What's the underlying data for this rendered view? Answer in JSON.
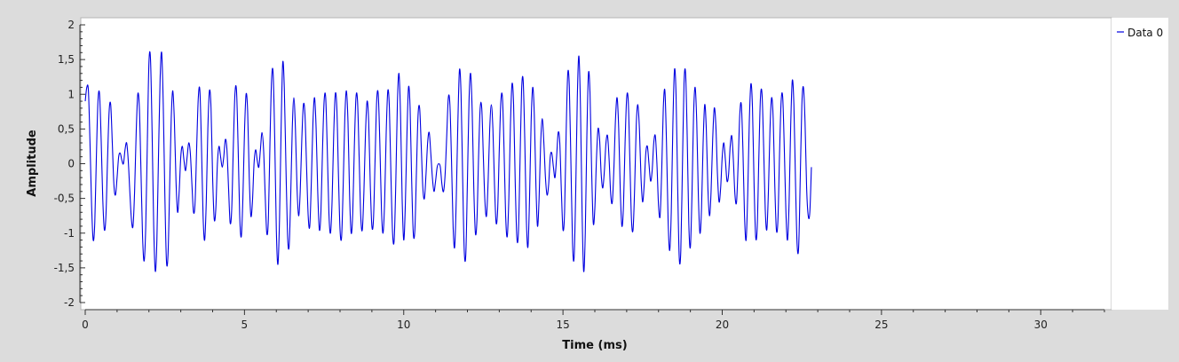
{
  "chart_data": {
    "type": "line",
    "title": "",
    "xlabel": "Time (ms)",
    "ylabel": "Amplitude",
    "xlim": [
      0,
      32
    ],
    "ylim": [
      -2,
      2
    ],
    "x_ticks": [
      0,
      5,
      10,
      15,
      20,
      25,
      30
    ],
    "x_tick_labels": [
      "0",
      "5",
      "10",
      "15",
      "20",
      "25",
      "30"
    ],
    "y_ticks": [
      2,
      1.5,
      1,
      0.5,
      0,
      -0.5,
      -1,
      -1.5,
      -2
    ],
    "y_tick_labels": [
      "2",
      "1,5",
      "1",
      "0,5",
      "0",
      "-0,5",
      "-1",
      "-1,5",
      "-2"
    ],
    "grid": false,
    "legend_position": "right",
    "series": [
      {
        "name": "Data 0",
        "color": "#0000e0",
        "x_start": 0,
        "x_step": 0.05,
        "values": [
          0.9,
          1.1,
          1.05,
          0.3,
          -0.6,
          -1.1,
          -0.85,
          0.1,
          0.9,
          1.0,
          0.35,
          -0.5,
          -0.95,
          -0.75,
          0.05,
          0.75,
          0.85,
          0.3,
          -0.3,
          -0.45,
          -0.2,
          0.1,
          0.15,
          0.05,
          0.0,
          0.2,
          0.3,
          0.05,
          -0.4,
          -0.8,
          -0.9,
          -0.4,
          0.45,
          1.0,
          0.8,
          -0.1,
          -1.05,
          -1.4,
          -0.9,
          0.3,
          1.45,
          1.5,
          0.45,
          -0.9,
          -1.55,
          -1.1,
          0.1,
          1.2,
          1.6,
          0.85,
          -0.45,
          -1.4,
          -1.3,
          -0.35,
          0.65,
          1.05,
          0.6,
          -0.25,
          -0.7,
          -0.4,
          0.1,
          0.25,
          0.05,
          -0.1,
          0.1,
          0.3,
          0.15,
          -0.3,
          -0.7,
          -0.55,
          0.25,
          0.95,
          1.05,
          0.25,
          -0.75,
          -1.1,
          -0.55,
          0.5,
          1.05,
          0.8,
          -0.2,
          -0.8,
          -0.65,
          0.0,
          0.25,
          0.1,
          -0.05,
          0.1,
          0.35,
          0.2,
          -0.35,
          -0.85,
          -0.65,
          0.25,
          1.0,
          1.05,
          0.25,
          -0.75,
          -1.05,
          -0.5,
          0.45,
          1.0,
          0.75,
          -0.2,
          -0.75,
          -0.55,
          0.0,
          0.2,
          0.05,
          -0.05,
          0.2,
          0.45,
          0.2,
          -0.45,
          -1.0,
          -0.8,
          0.3,
          1.2,
          1.3,
          0.35,
          -0.95,
          -1.45,
          -0.8,
          0.5,
          1.45,
          1.1,
          0.0,
          -1.0,
          -1.2,
          -0.5,
          0.5,
          0.95,
          0.5,
          -0.35,
          -0.75,
          -0.4,
          0.35,
          0.85,
          0.7,
          -0.05,
          -0.75,
          -0.9,
          -0.25,
          0.6,
          0.95,
          0.5,
          -0.4,
          -0.95,
          -0.7,
          0.2,
          0.9,
          0.95,
          0.2,
          -0.7,
          -1.0,
          -0.55,
          0.4,
          1.0,
          0.8,
          -0.15,
          -0.95,
          -1.05,
          -0.3,
          0.65,
          1.05,
          0.6,
          -0.45,
          -1.0,
          -0.7,
          0.25,
          0.95,
          0.9,
          0.1,
          -0.75,
          -0.95,
          -0.4,
          0.45,
          0.9,
          0.6,
          -0.3,
          -0.9,
          -0.8,
          0.05,
          0.9,
          1.0,
          0.3,
          -0.65,
          -1.0,
          -0.55,
          0.45,
          1.05,
          0.8,
          -0.2,
          -1.0,
          -1.1,
          -0.3,
          0.85,
          1.3,
          0.7,
          -0.5,
          -1.1,
          -0.6,
          0.4,
          1.1,
          0.8,
          -0.25,
          -1.0,
          -0.95,
          -0.1,
          0.7,
          0.8,
          0.25,
          -0.35,
          -0.5,
          -0.15,
          0.3,
          0.45,
          0.15,
          -0.2,
          -0.4,
          -0.25,
          -0.05,
          0.0,
          -0.05,
          -0.3,
          -0.4,
          -0.15,
          0.4,
          0.95,
          0.85,
          0.05,
          -0.9,
          -1.2,
          -0.5,
          0.6,
          1.35,
          1.0,
          -0.2,
          -1.25,
          -1.3,
          -0.25,
          0.9,
          1.3,
          0.75,
          -0.35,
          -1.0,
          -0.8,
          0.1,
          0.8,
          0.8,
          0.1,
          -0.55,
          -0.75,
          -0.25,
          0.5,
          0.85,
          0.5,
          -0.3,
          -0.85,
          -0.65,
          0.2,
          0.9,
          0.95,
          0.2,
          -0.75,
          -1.05,
          -0.5,
          0.55,
          1.15,
          0.85,
          -0.25,
          -1.05,
          -1.0,
          0.0,
          1.05,
          1.2,
          0.35,
          -0.8,
          -1.2,
          -0.5,
          0.6,
          1.1,
          0.7,
          -0.3,
          -0.9,
          -0.5,
          0.3,
          0.65,
          0.3,
          -0.2,
          -0.45,
          -0.3,
          0.1,
          0.15,
          -0.05,
          -0.2,
          0.1,
          0.45,
          0.3,
          -0.4,
          -0.95,
          -0.7,
          0.45,
          1.3,
          1.1,
          0.0,
          -1.15,
          -1.35,
          -0.4,
          0.95,
          1.55,
          0.8,
          -0.7,
          -1.55,
          -1.0,
          0.4,
          1.3,
          1.0,
          -0.1,
          -0.85,
          -0.65,
          0.05,
          0.5,
          0.35,
          -0.15,
          -0.35,
          -0.1,
          0.3,
          0.4,
          0.05,
          -0.45,
          -0.55,
          -0.05,
          0.65,
          0.95,
          0.5,
          -0.4,
          -0.9,
          -0.6,
          0.3,
          0.95,
          0.9,
          0.05,
          -0.8,
          -0.95,
          -0.35,
          0.55,
          0.85,
          0.5,
          -0.2,
          -0.55,
          -0.3,
          0.15,
          0.25,
          0.0,
          -0.25,
          -0.1,
          0.3,
          0.4,
          0.0,
          -0.6,
          -0.75,
          -0.1,
          0.8,
          1.05,
          0.3,
          -0.8,
          -1.25,
          -0.7,
          0.55,
          1.35,
          1.0,
          -0.3,
          -1.35,
          -1.25,
          -0.05,
          1.15,
          1.3,
          0.4,
          -0.85,
          -1.2,
          -0.45,
          0.7,
          1.1,
          0.6,
          -0.45,
          -1.0,
          -0.65,
          0.3,
          0.85,
          0.5,
          -0.35,
          -0.75,
          -0.4,
          0.35,
          0.8,
          0.55,
          -0.15,
          -0.55,
          -0.35,
          0.1,
          0.3,
          0.05,
          -0.25,
          -0.15,
          0.25,
          0.4,
          0.05,
          -0.45,
          -0.55,
          0.0,
          0.7,
          0.85,
          0.2,
          -0.75,
          -1.1,
          -0.45,
          0.6,
          1.15,
          0.8,
          -0.3,
          -1.05,
          -0.9,
          0.1,
          0.95,
          1.0,
          0.25,
          -0.65,
          -0.95,
          -0.4,
          0.5,
          0.95,
          0.65,
          -0.3,
          -0.95,
          -0.8,
          0.15,
          0.9,
          0.95,
          0.2,
          -0.7,
          -1.1,
          -0.55,
          0.55,
          1.2,
          0.85,
          -0.25,
          -1.15,
          -1.2,
          -0.2,
          0.85,
          1.1,
          0.6,
          -0.35,
          -0.75,
          -0.7,
          -0.05
        ]
      }
    ]
  }
}
